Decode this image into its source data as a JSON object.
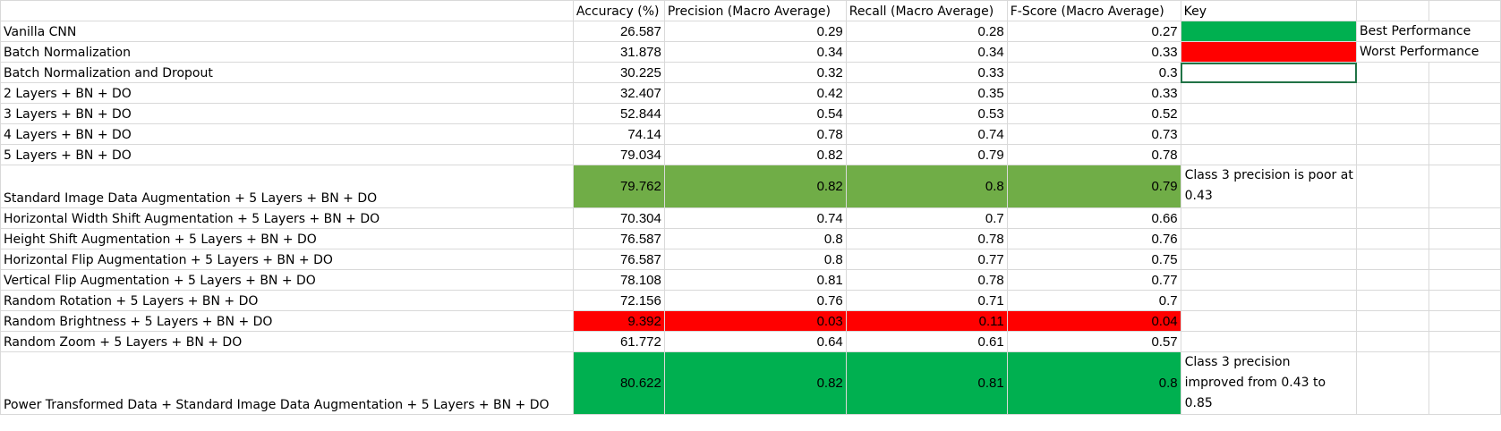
{
  "headers": {
    "accuracy": "Accuracy (%)",
    "precision": "Precision (Macro Average)",
    "recall": "Recall (Macro Average)",
    "fscore": "F-Score (Macro Average)",
    "key": "Key"
  },
  "key": {
    "best_label": "Best Performance",
    "worst_label": "Worst Performance",
    "best_color": "#00b050",
    "worst_color": "#ff0000",
    "standard_highlight_color": "#70ad47"
  },
  "rows": [
    {
      "label": "Vanilla CNN",
      "accuracy": "26.587",
      "precision": "0.29",
      "recall": "0.28",
      "fscore": "0.27"
    },
    {
      "label": "Batch Normalization",
      "accuracy": "31.878",
      "precision": "0.34",
      "recall": "0.34",
      "fscore": "0.33"
    },
    {
      "label": "Batch Normalization and Dropout",
      "accuracy": "30.225",
      "precision": "0.32",
      "recall": "0.33",
      "fscore": "0.3"
    },
    {
      "label": "2 Layers + BN + DO",
      "accuracy": "32.407",
      "precision": "0.42",
      "recall": "0.35",
      "fscore": "0.33"
    },
    {
      "label": "3 Layers + BN + DO",
      "accuracy": "52.844",
      "precision": "0.54",
      "recall": "0.53",
      "fscore": "0.52"
    },
    {
      "label": "4 Layers + BN + DO",
      "accuracy": "74.14",
      "precision": "0.78",
      "recall": "0.74",
      "fscore": "0.73"
    },
    {
      "label": "5 Layers + BN + DO",
      "accuracy": "79.034",
      "precision": "0.82",
      "recall": "0.79",
      "fscore": "0.78"
    },
    {
      "label": " Standard Image Data Augmentation + 5 Layers + BN + DO",
      "accuracy": "79.762",
      "precision": "0.82",
      "recall": "0.8",
      "fscore": "0.79",
      "note": "Class 3 precision is poor at 0.43"
    },
    {
      "label": "Horizontal Width Shift Augmentation + 5 Layers + BN + DO",
      "accuracy": "70.304",
      "precision": "0.74",
      "recall": "0.7",
      "fscore": "0.66"
    },
    {
      "label": "Height Shift Augmentation + 5 Layers + BN + DO",
      "accuracy": "76.587",
      "precision": "0.8",
      "recall": "0.78",
      "fscore": "0.76"
    },
    {
      "label": "Horizontal Flip Augmentation + 5 Layers + BN + DO",
      "accuracy": "76.587",
      "precision": "0.8",
      "recall": "0.77",
      "fscore": "0.75"
    },
    {
      "label": "Vertical Flip Augmentation + 5 Layers + BN + DO",
      "accuracy": "78.108",
      "precision": "0.81",
      "recall": "0.78",
      "fscore": "0.77"
    },
    {
      "label": "Random Rotation + 5 Layers + BN + DO",
      "accuracy": "72.156",
      "precision": "0.76",
      "recall": "0.71",
      "fscore": "0.7"
    },
    {
      "label": "Random Brightness + 5 Layers + BN + DO",
      "accuracy": "9.392",
      "precision": "0.03",
      "recall": "0.11",
      "fscore": "0.04"
    },
    {
      "label": "Random Zoom + 5 Layers + BN + DO",
      "accuracy": "61.772",
      "precision": "0.64",
      "recall": "0.61",
      "fscore": "0.57"
    },
    {
      "label": "Power Transformed Data + Standard Image Data Augmentation + 5 Layers + BN + DO",
      "accuracy": "80.622",
      "precision": "0.82",
      "recall": "0.81",
      "fscore": "0.8",
      "note": "Class 3 precision improved from 0.43 to 0.85"
    }
  ]
}
